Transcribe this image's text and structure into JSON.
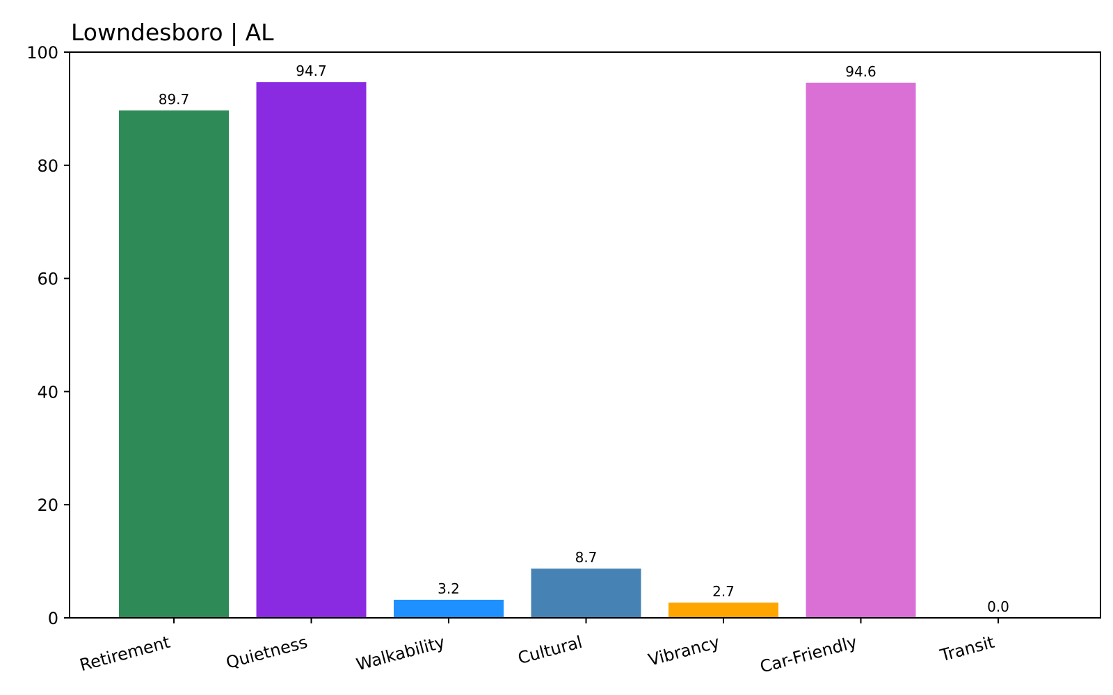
{
  "chart_data": {
    "type": "bar",
    "title": "Lowndesboro | AL",
    "xlabel": "",
    "ylabel": "",
    "categories": [
      "Retirement",
      "Quietness",
      "Walkability",
      "Cultural",
      "Vibrancy",
      "Car-Friendly",
      "Transit"
    ],
    "values": [
      89.7,
      94.7,
      3.2,
      8.7,
      2.7,
      94.6,
      0.0
    ],
    "data_labels": [
      "89.7",
      "94.7",
      "3.2",
      "8.7",
      "2.7",
      "94.6",
      "0.0"
    ],
    "colors": [
      "#2e8b57",
      "#8a2be2",
      "#1e90ff",
      "#4682b4",
      "#ffa500",
      "#da70d6",
      "#cccccc"
    ],
    "ylim": [
      0,
      100
    ],
    "yticks": [
      0,
      20,
      40,
      60,
      80,
      100
    ],
    "ytick_labels": [
      "0",
      "20",
      "40",
      "60",
      "80",
      "100"
    ],
    "grid": false,
    "legend": "none"
  }
}
